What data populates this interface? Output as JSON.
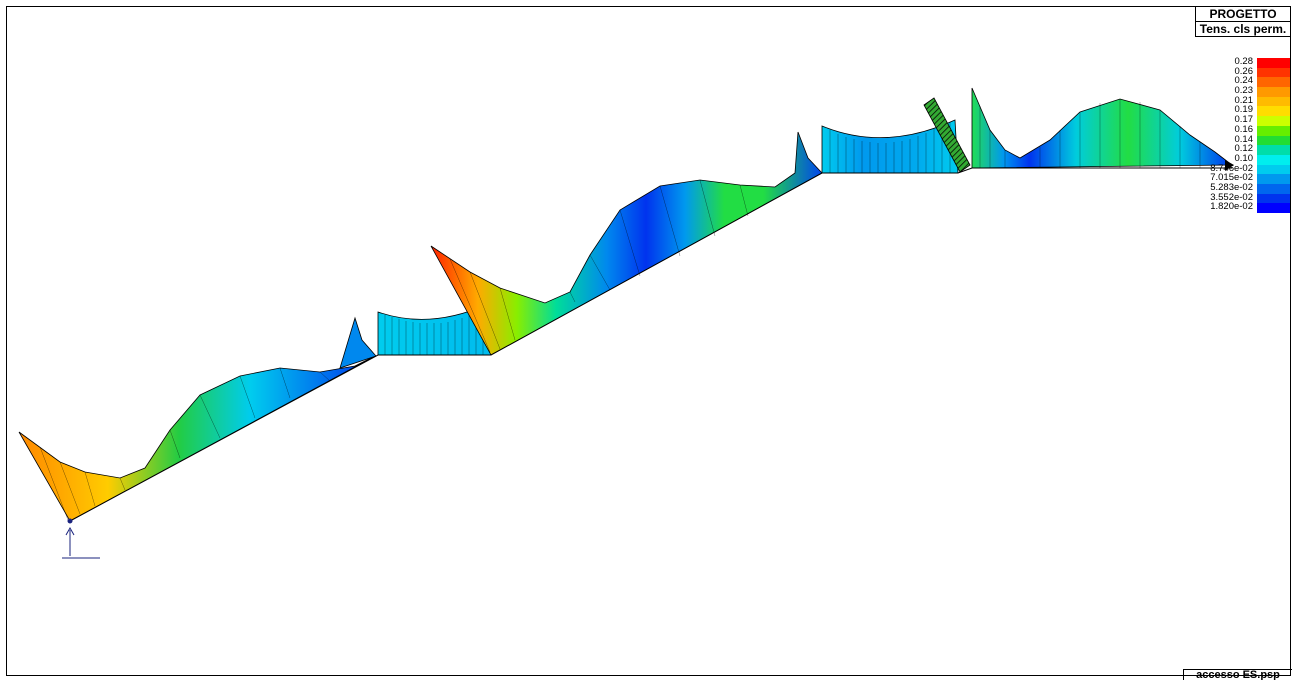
{
  "title_box": {
    "line1": "PROGETTO",
    "line2": "Tens. cls perm."
  },
  "legend": {
    "labels": [
      "0.28",
      "0.26",
      "0.24",
      "0.23",
      "0.21",
      "0.19",
      "0.17",
      "0.16",
      "0.14",
      "0.12",
      "0.10",
      "8.746e-02",
      "7.015e-02",
      "5.283e-02",
      "3.552e-02",
      "1.820e-02"
    ],
    "colors": [
      "#ff0000",
      "#ff3300",
      "#ff6600",
      "#ff9900",
      "#ffbb00",
      "#ffdd00",
      "#ccff00",
      "#66ee00",
      "#22dd33",
      "#00ddaa",
      "#00eeee",
      "#00ccee",
      "#0099ee",
      "#0066ee",
      "#0033ee",
      "#0000ff"
    ]
  },
  "footer": {
    "filename": "accesso ES.psp"
  }
}
